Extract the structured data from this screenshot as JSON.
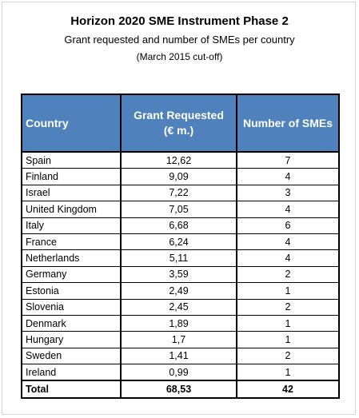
{
  "title": "Horizon 2020 SME Instrument Phase 2",
  "subtitle": "Grant requested and number of SMEs per country",
  "cutoff": "(March 2015 cut-off)",
  "table": {
    "headers": {
      "country": "Country",
      "grant_line1": "Grant Requested",
      "grant_line2": "(€ m.)",
      "smes": "Number of SMEs"
    },
    "rows": [
      {
        "country": "Spain",
        "grant": "12,62",
        "smes": "7"
      },
      {
        "country": "Finland",
        "grant": "9,09",
        "smes": "4"
      },
      {
        "country": "Israel",
        "grant": "7,22",
        "smes": "3"
      },
      {
        "country": "United Kingdom",
        "grant": "7,05",
        "smes": "4"
      },
      {
        "country": "Italy",
        "grant": "6,68",
        "smes": "6"
      },
      {
        "country": "France",
        "grant": "6,24",
        "smes": "4"
      },
      {
        "country": "Netherlands",
        "grant": "5,11",
        "smes": "4"
      },
      {
        "country": "Germany",
        "grant": "3,59",
        "smes": "2"
      },
      {
        "country": "Estonia",
        "grant": "2,49",
        "smes": "1"
      },
      {
        "country": "Slovenia",
        "grant": "2,45",
        "smes": "2"
      },
      {
        "country": "Denmark",
        "grant": "1,89",
        "smes": "1"
      },
      {
        "country": "Hungary",
        "grant": "1,7",
        "smes": "1"
      },
      {
        "country": "Sweden",
        "grant": "1,41",
        "smes": "2"
      },
      {
        "country": "Ireland",
        "grant": "0,99",
        "smes": "1"
      }
    ],
    "total": {
      "label": "Total",
      "grant": "68,53",
      "smes": "42"
    }
  },
  "colors": {
    "header_bg": "#4f81bd",
    "header_text": "#ffffff",
    "border": "#000000"
  }
}
